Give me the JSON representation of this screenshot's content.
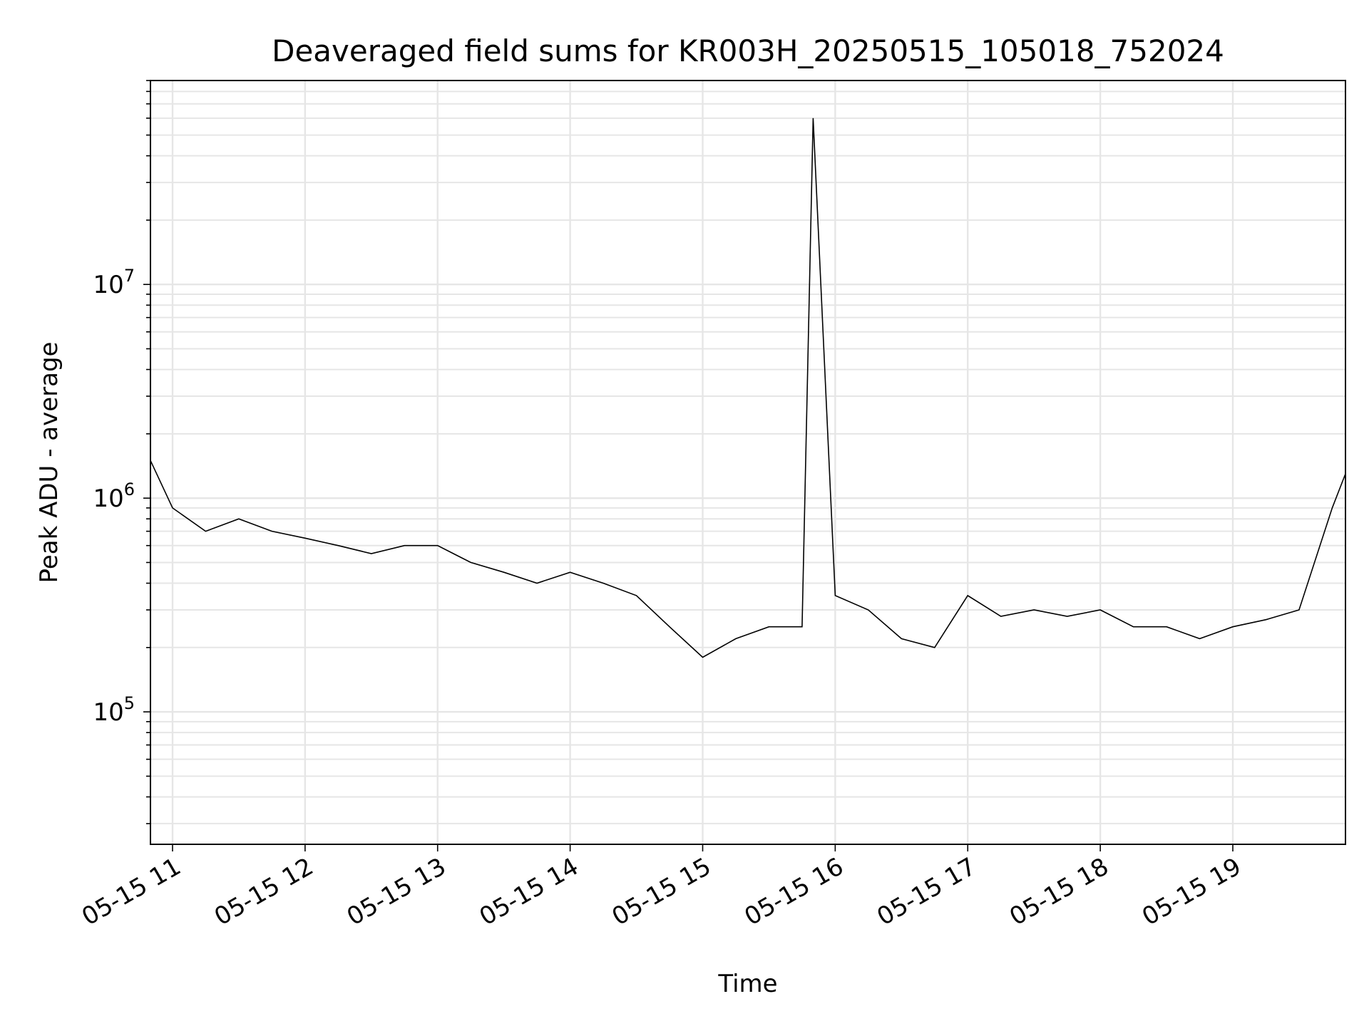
{
  "chart_data": {
    "type": "line",
    "title": "Deaveraged field sums for KR003H_20250515_105018_752024",
    "xlabel": "Time",
    "ylabel": "Peak ADU - average",
    "yscale": "log",
    "xlim": [
      "2025-05-15T10:50",
      "2025-05-15T19:51"
    ],
    "ylim": [
      24000,
      90000000
    ],
    "grid": true,
    "x_ticks": [
      "05-15 11",
      "05-15 12",
      "05-15 13",
      "05-15 14",
      "05-15 15",
      "05-15 16",
      "05-15 17",
      "05-15 18",
      "05-15 19"
    ],
    "y_ticks": [
      {
        "base": "10",
        "exp": "5",
        "value": 100000
      },
      {
        "base": "10",
        "exp": "6",
        "value": 1000000
      },
      {
        "base": "10",
        "exp": "7",
        "value": 10000000
      }
    ],
    "line_color": "#000000",
    "grid_color": "#e6e6e6",
    "series": [
      {
        "x": [
          "2025-05-15T10:50",
          "2025-05-15T11:00",
          "2025-05-15T11:15",
          "2025-05-15T11:30",
          "2025-05-15T11:45",
          "2025-05-15T12:00",
          "2025-05-15T12:15",
          "2025-05-15T12:30",
          "2025-05-15T12:45",
          "2025-05-15T13:00",
          "2025-05-15T13:15",
          "2025-05-15T13:30",
          "2025-05-15T13:45",
          "2025-05-15T14:00",
          "2025-05-15T14:15",
          "2025-05-15T14:30",
          "2025-05-15T14:45",
          "2025-05-15T15:00",
          "2025-05-15T15:15",
          "2025-05-15T15:30",
          "2025-05-15T15:45",
          "2025-05-15T15:50",
          "2025-05-15T16:00",
          "2025-05-15T16:15",
          "2025-05-15T16:30",
          "2025-05-15T16:45",
          "2025-05-15T17:00",
          "2025-05-15T17:15",
          "2025-05-15T17:30",
          "2025-05-15T17:45",
          "2025-05-15T18:00",
          "2025-05-15T18:15",
          "2025-05-15T18:30",
          "2025-05-15T18:45",
          "2025-05-15T19:00",
          "2025-05-15T19:15",
          "2025-05-15T19:30",
          "2025-05-15T19:45",
          "2025-05-15T19:51"
        ],
        "y": [
          1500000,
          900000,
          700000,
          800000,
          700000,
          650000,
          600000,
          550000,
          600000,
          600000,
          500000,
          450000,
          400000,
          450000,
          400000,
          350000,
          250000,
          180000,
          220000,
          250000,
          250000,
          60000000,
          350000,
          300000,
          220000,
          200000,
          350000,
          280000,
          300000,
          280000,
          300000,
          250000,
          250000,
          220000,
          250000,
          270000,
          300000,
          900000,
          1300000
        ]
      }
    ]
  }
}
